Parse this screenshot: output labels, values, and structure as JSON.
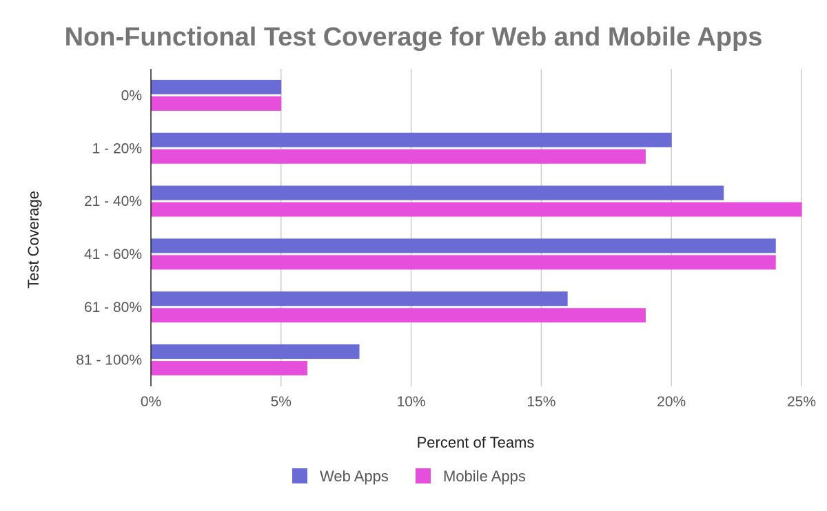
{
  "chart_data": {
    "type": "bar",
    "orientation": "horizontal",
    "title": "Non-Functional Test Coverage for Web and Mobile Apps",
    "xlabel": "Percent of Teams",
    "ylabel": "Test Coverage",
    "categories": [
      "0%",
      "1 - 20%",
      "21 - 40%",
      "41 - 60%",
      "61 - 80%",
      "81 - 100%"
    ],
    "series": [
      {
        "name": "Web Apps",
        "color": "#6b6bd6",
        "values": [
          5,
          20,
          22,
          24,
          16,
          8
        ]
      },
      {
        "name": "Mobile Apps",
        "color": "#e64fdb",
        "values": [
          5,
          19,
          25,
          24,
          19,
          6
        ]
      }
    ],
    "xlim": [
      0,
      25
    ],
    "x_ticks": [
      "0%",
      "5%",
      "10%",
      "15%",
      "20%",
      "25%"
    ],
    "grid": true,
    "legend_position": "bottom"
  }
}
